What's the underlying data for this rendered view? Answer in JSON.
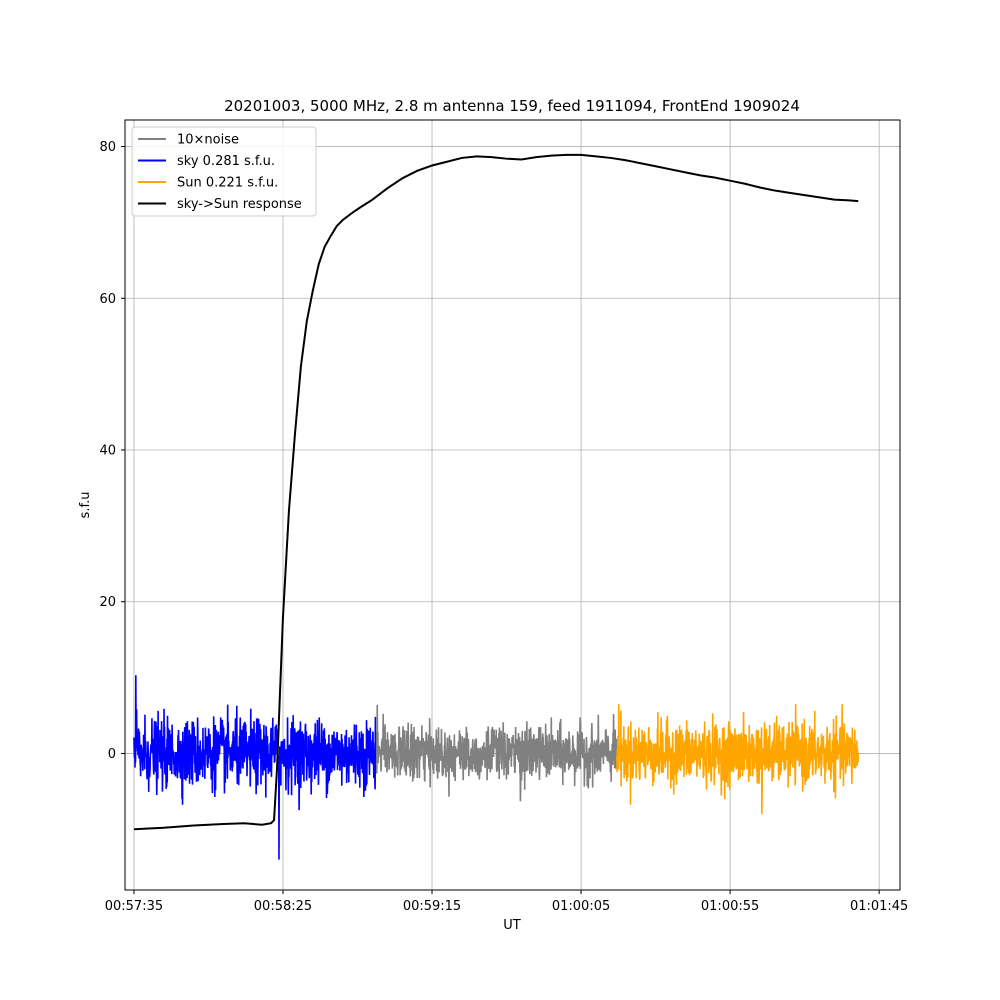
{
  "chart_data": {
    "type": "line",
    "title": "20201003, 5000 MHz, 2.8 m antenna 159, feed 1911094, FrontEnd 1909024",
    "xlabel": "UT",
    "ylabel": "s.f.u",
    "x_unit": "seconds since 00:57:35 UT",
    "xlim": [
      -3,
      257
    ],
    "ylim": [
      -18,
      83.5
    ],
    "x_ticks": [
      0,
      50,
      100,
      150,
      200,
      250
    ],
    "x_tick_labels": [
      "00:57:35",
      "00:58:25",
      "00:59:15",
      "01:00:05",
      "01:00:55",
      "01:01:45"
    ],
    "y_ticks": [
      0,
      20,
      40,
      60,
      80
    ],
    "y_tick_labels": [
      "0",
      "20",
      "40",
      "60",
      "80"
    ],
    "grid": true,
    "legend_position": "top-left",
    "series": [
      {
        "name": "10×noise",
        "color": "#808080",
        "kind": "noise",
        "x_range": [
          81,
          162
        ],
        "mean": 0,
        "typical_amplitude": 3.5,
        "min": -6.3,
        "max": 6.4
      },
      {
        "name": "sky 0.281 s.f.u.",
        "color": "#0000ff",
        "kind": "noise",
        "x_range": [
          0,
          81
        ],
        "mean": 0,
        "typical_amplitude": 4.5,
        "min": -14,
        "max": 10.3
      },
      {
        "name": "Sun 0.221 s.f.u.",
        "color": "#ffa500",
        "kind": "noise",
        "x_range": [
          162,
          243
        ],
        "mean": 0,
        "typical_amplitude": 4,
        "min": -8,
        "max": 6.5
      },
      {
        "name": "sky->Sun response",
        "color": "#000000",
        "kind": "line",
        "x": [
          0,
          10,
          20,
          30,
          37,
          43,
          46,
          47,
          48,
          49,
          50,
          52,
          54,
          56,
          58,
          60,
          62,
          64,
          66,
          68,
          70,
          73,
          76,
          80,
          85,
          90,
          95,
          100,
          105,
          110,
          115,
          120,
          125,
          130,
          135,
          140,
          145,
          150,
          155,
          160,
          165,
          170,
          175,
          180,
          185,
          190,
          195,
          200,
          205,
          210,
          215,
          220,
          225,
          230,
          235,
          240,
          243
        ],
        "y": [
          -10,
          -9.8,
          -9.5,
          -9.3,
          -9.2,
          -9.4,
          -9.2,
          -8.8,
          -2,
          8,
          18,
          32,
          42,
          51,
          57,
          61,
          64.5,
          66.8,
          68.2,
          69.5,
          70.3,
          71.2,
          72,
          73,
          74.5,
          75.8,
          76.8,
          77.5,
          78,
          78.5,
          78.7,
          78.6,
          78.4,
          78.3,
          78.6,
          78.8,
          78.9,
          78.9,
          78.7,
          78.5,
          78.2,
          77.8,
          77.4,
          77,
          76.6,
          76.2,
          75.9,
          75.5,
          75.1,
          74.6,
          74.2,
          73.9,
          73.6,
          73.3,
          73,
          72.9,
          72.8
        ]
      }
    ]
  }
}
